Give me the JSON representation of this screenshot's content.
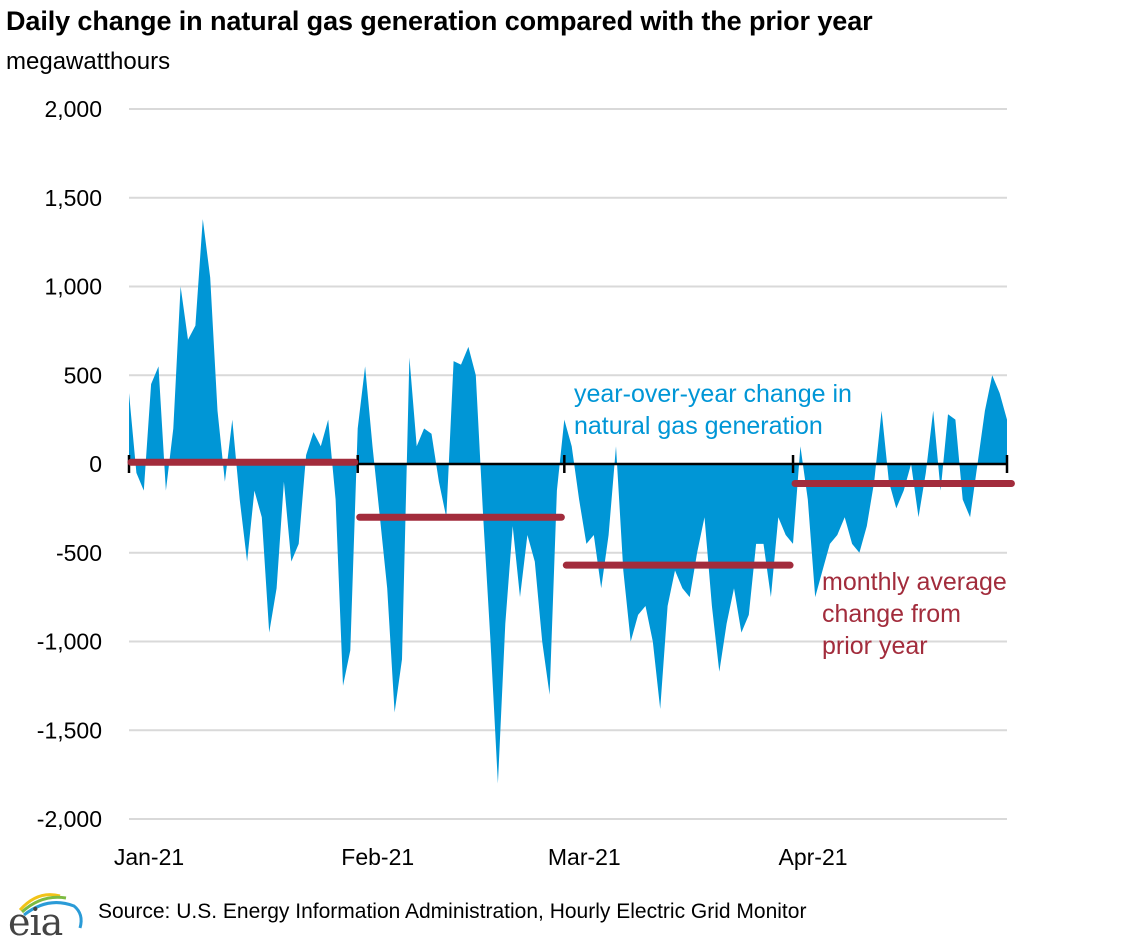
{
  "header": {
    "title": "Daily change in natural gas generation compared with the prior year",
    "units": "megawatthours"
  },
  "footer": {
    "source": "Source: U.S. Energy Information Administration, Hourly Electric Grid Monitor",
    "logo_text": "eia"
  },
  "colors": {
    "area": "#0096D6",
    "average": "#A22C3C",
    "axis": "#000000",
    "grid": "#D9D9D9"
  },
  "chart_data": {
    "type": "area",
    "title": "Daily change in natural gas generation compared with the prior year",
    "ylabel": "megawatthours",
    "xlabel": "",
    "ylim": [
      -2000,
      2000
    ],
    "yticks": [
      2000,
      1500,
      1000,
      500,
      0,
      -500,
      -1000,
      -1500,
      -2000
    ],
    "ytick_labels": [
      "2,000",
      "1,500",
      "1,000",
      "500",
      "0",
      "-500",
      "-1,000",
      "-1,500",
      "-2,000"
    ],
    "grid": true,
    "x_start": "2021-01-01",
    "x_end": "2021-04-30",
    "xtick_days": [
      0,
      31,
      59,
      90,
      119
    ],
    "xtick_labels": [
      "Jan-21",
      "Feb-21",
      "Mar-21",
      "Apr-21"
    ],
    "series": [
      {
        "name": "year-over-year change in natural gas generation",
        "type": "area",
        "values": [
          400,
          -50,
          -150,
          450,
          550,
          -150,
          200,
          1000,
          700,
          780,
          1380,
          1050,
          300,
          -100,
          250,
          -200,
          -550,
          -150,
          -300,
          -950,
          -700,
          -100,
          -550,
          -450,
          50,
          180,
          100,
          250,
          -200,
          -1250,
          -1050,
          200,
          550,
          100,
          -300,
          -700,
          -1400,
          -1100,
          600,
          100,
          200,
          170,
          -100,
          -300,
          580,
          560,
          660,
          500,
          -300,
          -1000,
          -1800,
          -900,
          -350,
          -750,
          -400,
          -550,
          -1000,
          -1300,
          -150,
          250,
          100,
          -200,
          -450,
          -400,
          -700,
          -400,
          100,
          -600,
          -1000,
          -850,
          -800,
          -1000,
          -1380,
          -800,
          -600,
          -700,
          -750,
          -500,
          -300,
          -800,
          -1170,
          -900,
          -700,
          -950,
          -850,
          -450,
          -450,
          -750,
          -300,
          -400,
          -450,
          100,
          -200,
          -750,
          -600,
          -450,
          -400,
          -300,
          -450,
          -500,
          -350,
          -100,
          300,
          -100,
          -250,
          -150,
          0,
          -300,
          -50,
          300,
          -150,
          280,
          250,
          -200,
          -300,
          0,
          300,
          500,
          400,
          250
        ]
      },
      {
        "name": "monthly average change from prior year",
        "type": "step",
        "segments": [
          {
            "month": "Jan-21",
            "start_day": 0,
            "end_day": 30,
            "value": 10
          },
          {
            "month": "Feb-21",
            "start_day": 31,
            "end_day": 58,
            "value": -300
          },
          {
            "month": "Mar-21",
            "start_day": 59,
            "end_day": 89,
            "value": -570
          },
          {
            "month": "Apr-21",
            "start_day": 90,
            "end_day": 119,
            "value": -110
          }
        ]
      }
    ],
    "annotations": [
      {
        "text_lines": [
          "year-over-year change in",
          "natural gas generation"
        ],
        "series": "area"
      },
      {
        "text_lines": [
          "monthly average",
          "change from",
          "prior year"
        ],
        "series": "average"
      }
    ]
  }
}
